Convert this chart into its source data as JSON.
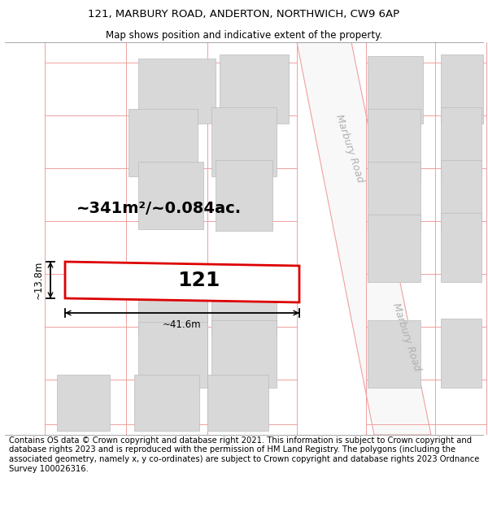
{
  "title_line1": "121, MARBURY ROAD, ANDERTON, NORTHWICH, CW9 6AP",
  "title_line2": "Map shows position and indicative extent of the property.",
  "footer_text": "Contains OS data © Crown copyright and database right 2021. This information is subject to Crown copyright and database rights 2023 and is reproduced with the permission of HM Land Registry. The polygons (including the associated geometry, namely x, y co-ordinates) are subject to Crown copyright and database rights 2023 Ordnance Survey 100026316.",
  "area_label": "~341m²/~0.084ac.",
  "number_label": "121",
  "width_label": "~41.6m",
  "height_label": "~13.8m",
  "bg_color": "#ffffff",
  "road_color": "#f0a0a0",
  "building_color": "#d8d8d8",
  "building_edge": "#bbbbbb",
  "highlight_color": "#dd0000",
  "road_label_color": "#b0b0b0",
  "road_label": "Marbury Road",
  "grid_color": "#f0a0a0",
  "title_fontsize": 9.5,
  "subtitle_fontsize": 8.5,
  "footer_fontsize": 7.2,
  "area_fontsize": 14,
  "number_fontsize": 18,
  "dim_fontsize": 8.5,
  "road_fontsize": 9
}
